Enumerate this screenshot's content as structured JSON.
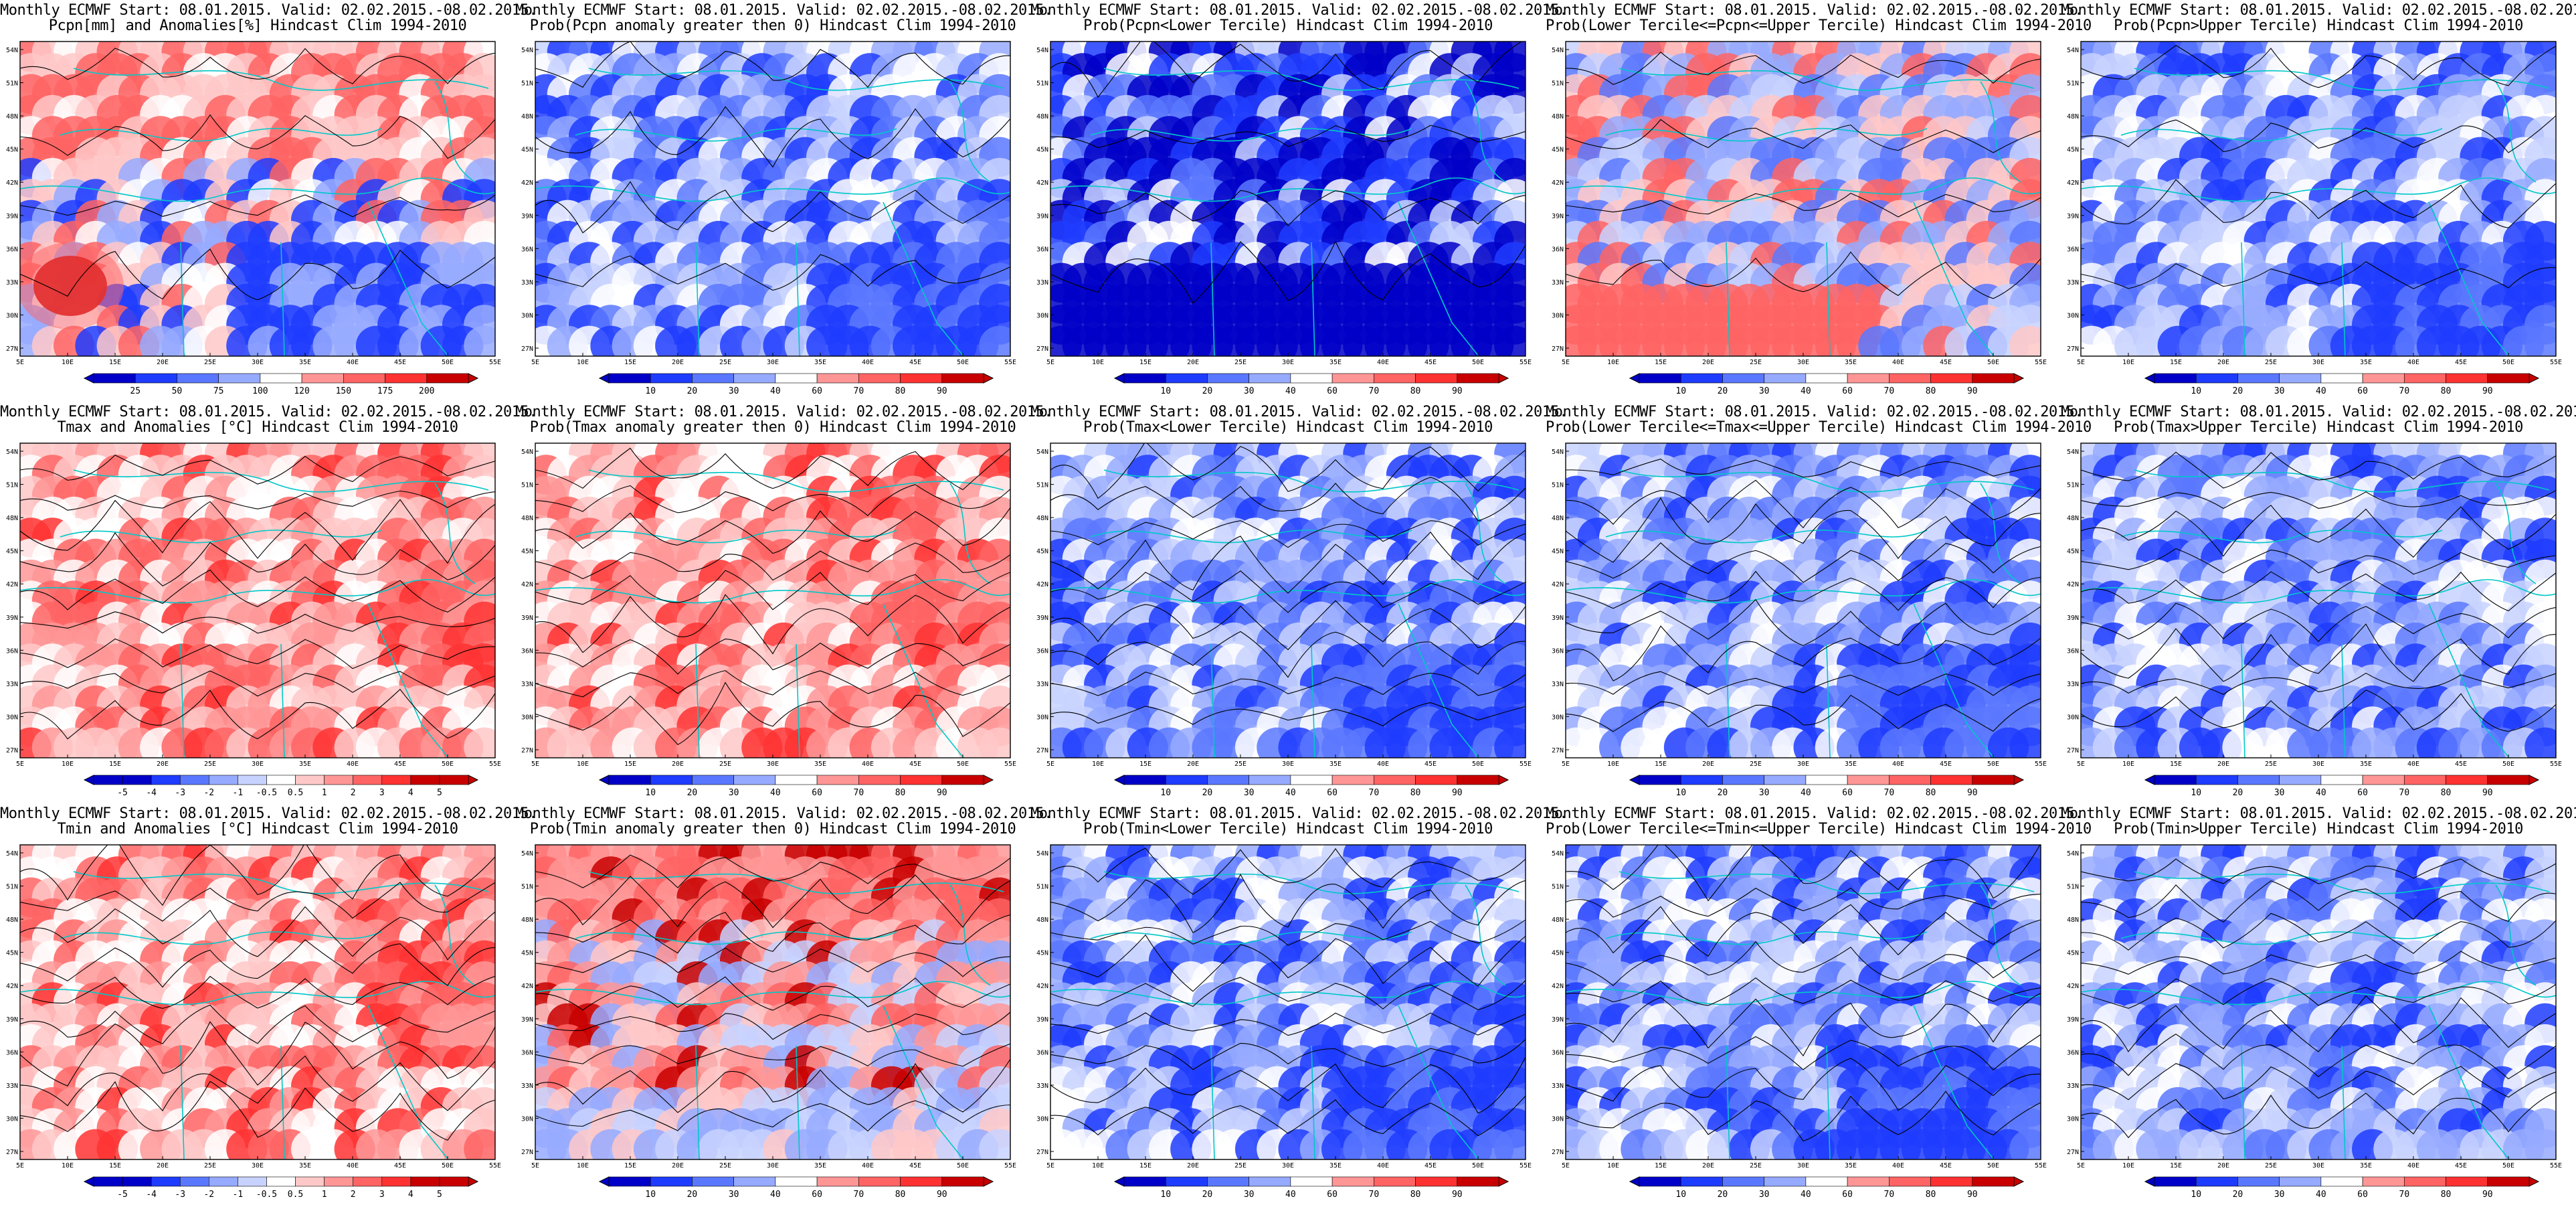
{
  "title_line1": "Monthly ECMWF Start: 08.01.2015. Valid: 02.02.2015.-08.02.2015.",
  "lat_labels": [
    "54N",
    "51N",
    "48N",
    "45N",
    "42N",
    "39N",
    "36N",
    "33N",
    "30N",
    "27N"
  ],
  "lon_labels": [
    "5E",
    "10E",
    "15E",
    "20E",
    "25E",
    "30E",
    "35E",
    "40E",
    "45E",
    "50E",
    "55E"
  ],
  "colors": {
    "blue_ramp": [
      "#0000c8",
      "#1e3cff",
      "#5a78ff",
      "#96aaff",
      "#c8d2ff",
      "#ffffff"
    ],
    "red_ramp": [
      "#ffffff",
      "#ffc8c8",
      "#ff9696",
      "#ff6464",
      "#ff3232",
      "#c80000"
    ],
    "coast": "#00c8c8",
    "contour": "#000000"
  },
  "colorbars": {
    "precip_anom": [
      "25",
      "50",
      "75",
      "100",
      "120",
      "150",
      "175",
      "200"
    ],
    "temp_anom": [
      "-5",
      "-4",
      "-3",
      "-2",
      "-1",
      "-0.5",
      "0.5",
      "1",
      "2",
      "3",
      "4",
      "5"
    ],
    "prob": [
      "10",
      "20",
      "30",
      "40",
      "60",
      "70",
      "80",
      "90"
    ]
  },
  "panels": [
    {
      "line2": "Pcpn[mm] and Anomalies[%] Hindcast Clim 1994-2010",
      "cbar": "precip_anom",
      "fill": "mixed",
      "seed": 11,
      "contours": "few"
    },
    {
      "line2": "Prob(Pcpn anomaly greater then 0) Hindcast Clim 1994-2010",
      "cbar": "prob",
      "fill": "blue",
      "seed": 12,
      "contours": "few"
    },
    {
      "line2": "Prob(Pcpn<Lower Tercile) Hindcast Clim 1994-2010",
      "cbar": "prob",
      "fill": "deepblue",
      "seed": 13,
      "contours": "few"
    },
    {
      "line2": "Prob(Lower Tercile<=Pcpn<=Upper Tercile) Hindcast Clim 1994-2010",
      "cbar": "prob",
      "fill": "bluered",
      "seed": 14,
      "contours": "few"
    },
    {
      "line2": "Prob(Pcpn>Upper Tercile) Hindcast Clim 1994-2010",
      "cbar": "prob",
      "fill": "blue",
      "seed": 15,
      "contours": "few"
    },
    {
      "line2": "Tmax and Anomalies [°C] Hindcast Clim 1994-2010",
      "cbar": "temp_anom",
      "fill": "red",
      "seed": 21,
      "contours": "many"
    },
    {
      "line2": "Prob(Tmax anomaly greater then 0) Hindcast Clim 1994-2010",
      "cbar": "prob",
      "fill": "red",
      "seed": 22,
      "contours": "many"
    },
    {
      "line2": "Prob(Tmax<Lower Tercile) Hindcast Clim 1994-2010",
      "cbar": "prob",
      "fill": "blue",
      "seed": 23,
      "contours": "many"
    },
    {
      "line2": "Prob(Lower Tercile<=Tmax<=Upper Tercile) Hindcast Clim 1994-2010",
      "cbar": "prob",
      "fill": "blue",
      "seed": 24,
      "contours": "many"
    },
    {
      "line2": "Prob(Tmax>Upper Tercile) Hindcast Clim 1994-2010",
      "cbar": "prob",
      "fill": "lightblue",
      "seed": 25,
      "contours": "many"
    },
    {
      "line2": "Tmin and Anomalies [°C] Hindcast Clim 1994-2010",
      "cbar": "temp_anom",
      "fill": "red",
      "seed": 31,
      "contours": "many"
    },
    {
      "line2": "Prob(Tmin anomaly greater then 0) Hindcast Clim 1994-2010",
      "cbar": "prob",
      "fill": "redblue",
      "seed": 32,
      "contours": "many"
    },
    {
      "line2": "Prob(Tmin<Lower Tercile) Hindcast Clim 1994-2010",
      "cbar": "prob",
      "fill": "blue",
      "seed": 33,
      "contours": "many"
    },
    {
      "line2": "Prob(Lower Tercile<=Tmin<=Upper Tercile) Hindcast Clim 1994-2010",
      "cbar": "prob",
      "fill": "blue",
      "seed": 34,
      "contours": "many"
    },
    {
      "line2": "Prob(Tmin>Upper Tercile) Hindcast Clim 1994-2010",
      "cbar": "prob",
      "fill": "lightblue",
      "seed": 35,
      "contours": "many"
    }
  ]
}
